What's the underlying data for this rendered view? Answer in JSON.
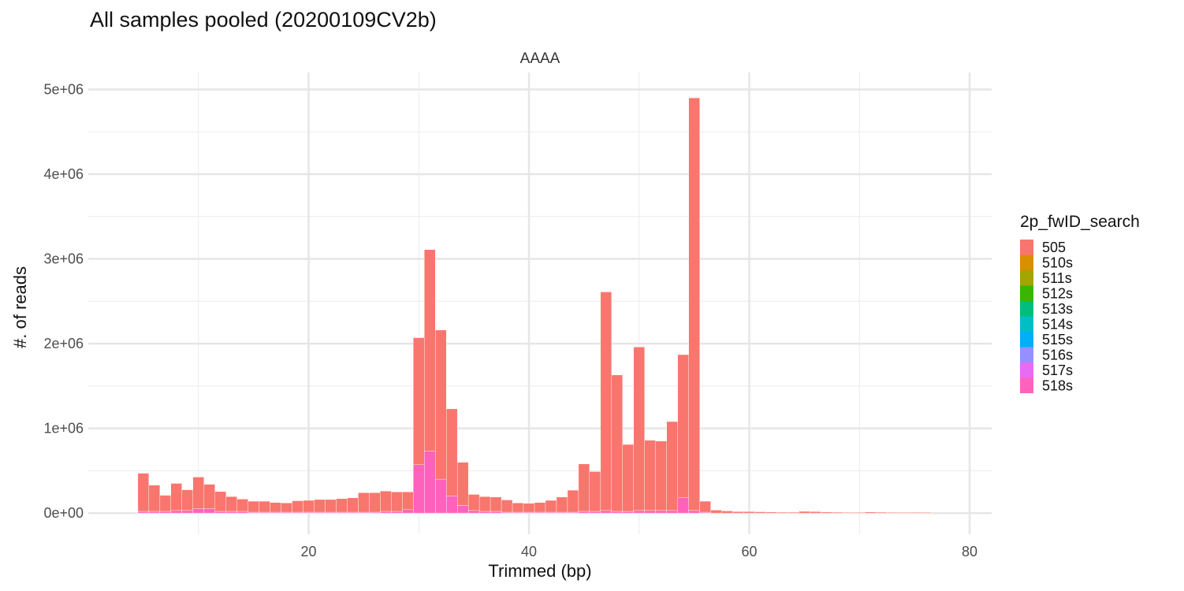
{
  "chart_data": {
    "type": "bar",
    "stacked": true,
    "title": "All samples pooled (20200109CV2b)",
    "facet": "AAAA",
    "xlabel": "Trimmed (bp)",
    "ylabel": "#. of reads",
    "xlim": [
      0,
      82
    ],
    "ylim": [
      -250000,
      5200000
    ],
    "x_ticks": [
      20,
      40,
      60,
      80
    ],
    "x_tick_labels": [
      "20",
      "40",
      "60",
      "80"
    ],
    "y_ticks": [
      0,
      1000000,
      2000000,
      3000000,
      4000000,
      5000000
    ],
    "y_tick_labels": [
      "0e+00",
      "1e+06",
      "2e+06",
      "3e+06",
      "4e+06",
      "5e+06"
    ],
    "grid": true,
    "legend_title": "2p_fwID_search",
    "legend_position": "right",
    "legend": [
      {
        "name": "505",
        "color": "#F8766D"
      },
      {
        "name": "510s",
        "color": "#D89000"
      },
      {
        "name": "511s",
        "color": "#A3A500"
      },
      {
        "name": "512s",
        "color": "#39B600"
      },
      {
        "name": "513s",
        "color": "#00BF7D"
      },
      {
        "name": "514s",
        "color": "#00BFC4"
      },
      {
        "name": "515s",
        "color": "#00B0F6"
      },
      {
        "name": "516s",
        "color": "#9590FF"
      },
      {
        "name": "517s",
        "color": "#E76BF3"
      },
      {
        "name": "518s",
        "color": "#FF62BC"
      }
    ],
    "x": [
      5,
      6,
      7,
      8,
      9,
      10,
      11,
      12,
      13,
      14,
      15,
      16,
      17,
      18,
      19,
      20,
      21,
      22,
      23,
      24,
      25,
      26,
      27,
      28,
      29,
      30,
      31,
      32,
      33,
      34,
      35,
      36,
      37,
      38,
      39,
      40,
      41,
      42,
      43,
      44,
      45,
      46,
      47,
      48,
      49,
      50,
      51,
      52,
      53,
      54,
      55,
      56,
      57,
      58,
      59,
      60,
      61,
      62,
      63,
      64,
      65,
      66,
      67,
      68,
      69,
      70,
      71,
      72,
      73,
      74,
      75,
      76
    ],
    "series": [
      {
        "name": "505",
        "values": [
          450000,
          310000,
          190000,
          320000,
          245000,
          375000,
          290000,
          235000,
          175000,
          145000,
          130000,
          130000,
          115000,
          110000,
          135000,
          140000,
          150000,
          150000,
          160000,
          170000,
          230000,
          230000,
          240000,
          230000,
          210000,
          1500000,
          2380000,
          1760000,
          1030000,
          510000,
          190000,
          175000,
          170000,
          145000,
          110000,
          105000,
          115000,
          140000,
          180000,
          260000,
          560000,
          470000,
          2580000,
          1610000,
          790000,
          1930000,
          830000,
          820000,
          1050000,
          1690000,
          4870000,
          130000,
          35000,
          25000,
          18000,
          18000,
          15000,
          12000,
          10000,
          10000,
          20000,
          18000,
          12000,
          10000,
          8000,
          8000,
          12000,
          10000,
          8000,
          8000,
          8000,
          8000
        ]
      },
      {
        "name": "510s",
        "values": [
          0,
          0,
          0,
          0,
          0,
          0,
          0,
          0,
          0,
          0,
          0,
          0,
          0,
          0,
          0,
          0,
          0,
          0,
          0,
          0,
          0,
          0,
          0,
          0,
          0,
          0,
          0,
          0,
          0,
          0,
          0,
          0,
          0,
          0,
          0,
          0,
          0,
          0,
          0,
          0,
          0,
          0,
          0,
          0,
          0,
          0,
          0,
          0,
          0,
          0,
          0,
          0,
          0,
          0,
          0,
          0,
          0,
          0,
          0,
          0,
          0,
          0,
          0,
          0,
          0,
          0,
          0,
          0,
          0,
          0,
          0,
          0
        ]
      },
      {
        "name": "511s",
        "values": [
          0,
          0,
          0,
          0,
          0,
          0,
          0,
          0,
          0,
          0,
          0,
          0,
          0,
          0,
          0,
          0,
          0,
          0,
          0,
          0,
          0,
          0,
          0,
          0,
          0,
          0,
          0,
          0,
          0,
          0,
          0,
          0,
          0,
          0,
          0,
          0,
          0,
          0,
          0,
          0,
          0,
          0,
          0,
          0,
          0,
          0,
          0,
          0,
          0,
          0,
          0,
          0,
          0,
          0,
          0,
          0,
          0,
          0,
          0,
          0,
          0,
          0,
          0,
          0,
          0,
          0,
          0,
          0,
          0,
          0,
          0,
          0
        ]
      },
      {
        "name": "512s",
        "values": [
          0,
          0,
          0,
          0,
          0,
          0,
          0,
          0,
          0,
          0,
          0,
          0,
          0,
          0,
          0,
          0,
          0,
          0,
          0,
          0,
          0,
          0,
          0,
          0,
          0,
          0,
          0,
          0,
          0,
          0,
          0,
          0,
          0,
          0,
          0,
          0,
          0,
          0,
          0,
          0,
          0,
          0,
          0,
          0,
          0,
          0,
          0,
          0,
          0,
          0,
          0,
          0,
          0,
          0,
          0,
          0,
          0,
          0,
          0,
          0,
          0,
          0,
          0,
          0,
          0,
          0,
          0,
          0,
          0,
          0,
          0,
          0
        ]
      },
      {
        "name": "513s",
        "values": [
          0,
          0,
          0,
          0,
          0,
          0,
          0,
          0,
          0,
          0,
          0,
          0,
          0,
          0,
          0,
          0,
          0,
          0,
          0,
          0,
          0,
          0,
          0,
          0,
          0,
          0,
          0,
          0,
          0,
          0,
          0,
          0,
          0,
          0,
          0,
          0,
          0,
          0,
          0,
          0,
          0,
          0,
          0,
          0,
          0,
          0,
          0,
          0,
          0,
          0,
          0,
          0,
          0,
          0,
          0,
          0,
          0,
          0,
          0,
          0,
          0,
          0,
          0,
          0,
          0,
          0,
          0,
          0,
          0,
          0,
          0,
          0
        ]
      },
      {
        "name": "514s",
        "values": [
          0,
          0,
          0,
          0,
          0,
          0,
          0,
          0,
          0,
          0,
          0,
          0,
          0,
          0,
          0,
          0,
          0,
          0,
          0,
          0,
          0,
          0,
          0,
          0,
          0,
          0,
          0,
          0,
          0,
          0,
          0,
          0,
          0,
          0,
          0,
          0,
          0,
          0,
          0,
          0,
          0,
          0,
          0,
          0,
          0,
          0,
          0,
          0,
          0,
          0,
          0,
          0,
          0,
          0,
          0,
          0,
          0,
          0,
          0,
          0,
          0,
          0,
          0,
          0,
          0,
          0,
          0,
          0,
          0,
          0,
          0,
          0
        ]
      },
      {
        "name": "515s",
        "values": [
          0,
          0,
          0,
          0,
          0,
          0,
          0,
          0,
          0,
          0,
          0,
          0,
          0,
          0,
          0,
          0,
          0,
          0,
          0,
          0,
          0,
          0,
          0,
          0,
          0,
          0,
          0,
          0,
          0,
          0,
          0,
          0,
          0,
          0,
          0,
          0,
          0,
          0,
          0,
          0,
          0,
          0,
          0,
          0,
          0,
          0,
          0,
          0,
          0,
          0,
          0,
          0,
          0,
          0,
          0,
          0,
          0,
          0,
          0,
          0,
          0,
          0,
          0,
          0,
          0,
          0,
          0,
          0,
          0,
          0,
          0,
          0
        ]
      },
      {
        "name": "516s",
        "values": [
          0,
          0,
          0,
          0,
          0,
          0,
          0,
          0,
          0,
          0,
          0,
          0,
          0,
          0,
          0,
          0,
          0,
          0,
          0,
          0,
          0,
          0,
          0,
          0,
          0,
          0,
          0,
          0,
          0,
          0,
          0,
          0,
          0,
          0,
          0,
          0,
          0,
          0,
          0,
          0,
          0,
          0,
          0,
          0,
          0,
          0,
          0,
          0,
          0,
          0,
          0,
          0,
          0,
          0,
          0,
          0,
          0,
          0,
          0,
          0,
          0,
          0,
          0,
          0,
          0,
          0,
          0,
          0,
          0,
          0,
          0,
          0
        ]
      },
      {
        "name": "517s",
        "values": [
          0,
          0,
          0,
          0,
          0,
          0,
          0,
          0,
          0,
          0,
          0,
          0,
          0,
          0,
          0,
          0,
          0,
          0,
          0,
          0,
          0,
          0,
          0,
          0,
          0,
          0,
          0,
          0,
          0,
          0,
          0,
          0,
          0,
          0,
          0,
          0,
          0,
          0,
          0,
          0,
          0,
          0,
          0,
          0,
          0,
          0,
          0,
          0,
          0,
          0,
          0,
          0,
          0,
          0,
          0,
          0,
          0,
          0,
          0,
          0,
          0,
          0,
          0,
          0,
          0,
          0,
          0,
          0,
          0,
          0,
          0,
          0
        ]
      },
      {
        "name": "518s",
        "values": [
          20000,
          20000,
          20000,
          30000,
          30000,
          50000,
          50000,
          20000,
          20000,
          20000,
          10000,
          10000,
          10000,
          10000,
          10000,
          10000,
          10000,
          10000,
          10000,
          10000,
          10000,
          10000,
          20000,
          20000,
          40000,
          570000,
          730000,
          400000,
          200000,
          90000,
          30000,
          20000,
          20000,
          10000,
          10000,
          10000,
          10000,
          10000,
          10000,
          10000,
          20000,
          20000,
          30000,
          20000,
          20000,
          30000,
          30000,
          30000,
          30000,
          180000,
          30000,
          10000,
          0,
          0,
          0,
          0,
          0,
          0,
          0,
          0,
          0,
          0,
          0,
          0,
          0,
          0,
          0,
          0,
          0,
          0,
          0,
          0
        ]
      }
    ]
  }
}
